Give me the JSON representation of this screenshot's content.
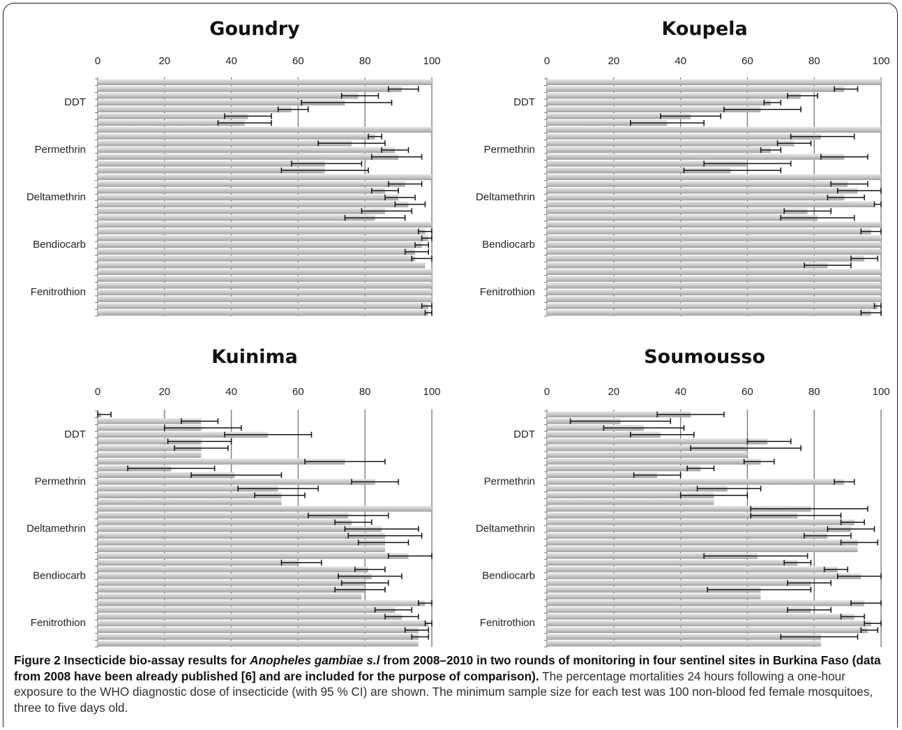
{
  "figure": {
    "caption_label": "Figure 2",
    "caption_bold_a": " Insecticide bio-assay results for ",
    "caption_species": "Anopheles gambiae s.l",
    "caption_bold_b": " from 2008–2010 in two rounds of monitoring in four sentinel sites in Burkina Faso (data from 2008 have been already published [6] and are included for the purpose of comparison).",
    "caption_body": " The percentage mortalities 24 hours following a one-hour exposure to the WHO diagnostic dose of insecticide (with 95 % CI) are shown. The minimum sample size for each test was 100 non-blood fed female mosquitoes, three to five days old."
  },
  "colors": {
    "bar": "#c8c8c8",
    "bar_light": "#e2e2e2",
    "gridline": "#7a7a7a",
    "errorbar": "#111111"
  },
  "chart_data": [
    {
      "type": "bar",
      "orientation": "horizontal",
      "title": "Goundry",
      "xlim": [
        0,
        100
      ],
      "xticks": [
        0,
        20,
        40,
        60,
        80,
        100
      ],
      "categories": [
        "DDT",
        "Permethrin",
        "Deltamethrin",
        "Bendiocarb",
        "Fenitrothion"
      ],
      "values": [
        [
          100,
          91,
          78,
          74,
          58,
          45,
          44
        ],
        [
          100,
          83,
          76,
          89,
          90,
          68,
          68
        ],
        [
          100,
          92,
          86,
          90,
          93,
          86,
          83
        ],
        [
          100,
          98,
          99,
          97,
          95,
          95,
          98
        ],
        [
          100,
          100,
          100,
          100,
          100,
          99,
          99
        ]
      ],
      "ci": [
        [
          null,
          [
            87,
            96
          ],
          [
            73,
            84
          ],
          [
            61,
            88
          ],
          [
            54,
            63
          ],
          [
            38,
            52
          ],
          [
            36,
            52
          ]
        ],
        [
          null,
          [
            81,
            85
          ],
          [
            66,
            86
          ],
          [
            85,
            93
          ],
          [
            82,
            97
          ],
          [
            58,
            79
          ],
          [
            55,
            81
          ]
        ],
        [
          null,
          [
            87,
            97
          ],
          [
            82,
            90
          ],
          [
            86,
            95
          ],
          [
            89,
            98
          ],
          [
            79,
            94
          ],
          [
            74,
            92
          ]
        ],
        [
          null,
          [
            96,
            100
          ],
          [
            97,
            100
          ],
          [
            95,
            99
          ],
          [
            92,
            99
          ],
          [
            94,
            100
          ],
          null
        ],
        [
          null,
          null,
          null,
          null,
          null,
          [
            97,
            100
          ],
          [
            98,
            100
          ]
        ]
      ]
    },
    {
      "type": "bar",
      "orientation": "horizontal",
      "title": "Koupela",
      "xlim": [
        0,
        100
      ],
      "xticks": [
        0,
        20,
        40,
        60,
        80,
        100
      ],
      "categories": [
        "DDT",
        "Permethrin",
        "Deltamethrin",
        "Bendiocarb",
        "Fenitrothion"
      ],
      "values": [
        [
          100,
          89,
          76,
          67,
          64,
          43,
          36
        ],
        [
          100,
          82,
          74,
          67,
          89,
          60,
          55
        ],
        [
          100,
          90,
          93,
          89,
          98,
          78,
          81
        ],
        [
          100,
          97,
          100,
          100,
          100,
          95,
          84
        ],
        [
          100,
          100,
          100,
          100,
          100,
          99,
          97
        ]
      ],
      "ci": [
        [
          null,
          [
            86,
            93
          ],
          [
            72,
            81
          ],
          [
            65,
            70
          ],
          [
            53,
            76
          ],
          [
            34,
            52
          ],
          [
            25,
            47
          ]
        ],
        [
          null,
          [
            73,
            92
          ],
          [
            69,
            79
          ],
          [
            64,
            70
          ],
          [
            82,
            96
          ],
          [
            47,
            73
          ],
          [
            41,
            70
          ]
        ],
        [
          null,
          [
            85,
            96
          ],
          [
            87,
            100
          ],
          [
            84,
            95
          ],
          [
            98,
            100
          ],
          [
            71,
            85
          ],
          [
            70,
            92
          ]
        ],
        [
          null,
          [
            94,
            100
          ],
          null,
          null,
          null,
          [
            91,
            99
          ],
          [
            77,
            91
          ]
        ],
        [
          null,
          null,
          null,
          null,
          null,
          [
            98,
            100
          ],
          [
            94,
            100
          ]
        ]
      ]
    },
    {
      "type": "bar",
      "orientation": "horizontal",
      "title": "Kuinima",
      "xlim": [
        0,
        100
      ],
      "xticks": [
        0,
        20,
        40,
        60,
        80,
        100
      ],
      "categories": [
        "DDT",
        "Permethrin",
        "Deltamethrin",
        "Bendiocarb",
        "Fenitrothion"
      ],
      "values": [
        [
          1,
          31,
          31,
          51,
          31,
          31,
          31
        ],
        [
          74,
          22,
          41,
          83,
          54,
          55,
          55
        ],
        [
          100,
          75,
          76,
          85,
          86,
          86,
          86
        ],
        [
          93,
          60,
          81,
          82,
          80,
          80,
          79
        ],
        [
          98,
          89,
          91,
          99,
          96,
          96,
          96
        ]
      ],
      "ci": [
        [
          [
            0,
            4
          ],
          [
            25,
            36
          ],
          [
            20,
            43
          ],
          [
            38,
            64
          ],
          [
            21,
            40
          ],
          [
            23,
            39
          ],
          null
        ],
        [
          [
            62,
            86
          ],
          [
            9,
            35
          ],
          [
            28,
            55
          ],
          [
            76,
            90
          ],
          [
            42,
            66
          ],
          [
            47,
            62
          ],
          null
        ],
        [
          null,
          [
            63,
            87
          ],
          [
            71,
            82
          ],
          [
            74,
            96
          ],
          [
            75,
            97
          ],
          [
            78,
            93
          ],
          null
        ],
        [
          [
            87,
            100
          ],
          [
            55,
            67
          ],
          [
            77,
            86
          ],
          [
            72,
            91
          ],
          [
            73,
            87
          ],
          [
            71,
            86
          ],
          null
        ],
        [
          [
            96,
            100
          ],
          [
            83,
            94
          ],
          [
            86,
            96
          ],
          [
            98,
            100
          ],
          [
            92,
            99
          ],
          [
            94,
            99
          ],
          null
        ]
      ]
    },
    {
      "type": "bar",
      "orientation": "horizontal",
      "title": "Soumousso",
      "xlim": [
        0,
        100
      ],
      "xticks": [
        0,
        20,
        40,
        60,
        80,
        100
      ],
      "categories": [
        "DDT",
        "Permethrin",
        "Deltamethrin",
        "Bendiocarb",
        "Fenitrothion"
      ],
      "values": [
        [
          43,
          22,
          29,
          34,
          66,
          60,
          60
        ],
        [
          64,
          46,
          33,
          89,
          54,
          50,
          50
        ],
        [
          79,
          75,
          92,
          91,
          84,
          93,
          93
        ],
        [
          63,
          75,
          87,
          94,
          79,
          64,
          64
        ],
        [
          95,
          79,
          92,
          97,
          96,
          82,
          82
        ]
      ],
      "ci": [
        [
          [
            33,
            53
          ],
          [
            7,
            37
          ],
          [
            17,
            41
          ],
          [
            25,
            44
          ],
          [
            60,
            73
          ],
          [
            43,
            76
          ],
          null
        ],
        [
          [
            59,
            68
          ],
          [
            42,
            50
          ],
          [
            26,
            40
          ],
          [
            86,
            92
          ],
          [
            45,
            64
          ],
          [
            40,
            60
          ],
          null
        ],
        [
          [
            61,
            96
          ],
          [
            61,
            88
          ],
          [
            88,
            95
          ],
          [
            84,
            98
          ],
          [
            77,
            91
          ],
          [
            88,
            99
          ],
          null
        ],
        [
          [
            47,
            78
          ],
          [
            71,
            79
          ],
          [
            83,
            90
          ],
          [
            87,
            100
          ],
          [
            72,
            85
          ],
          [
            48,
            79
          ],
          null
        ],
        [
          [
            91,
            100
          ],
          [
            72,
            85
          ],
          [
            88,
            95
          ],
          [
            95,
            100
          ],
          [
            94,
            99
          ],
          [
            70,
            93
          ],
          null
        ]
      ]
    }
  ]
}
